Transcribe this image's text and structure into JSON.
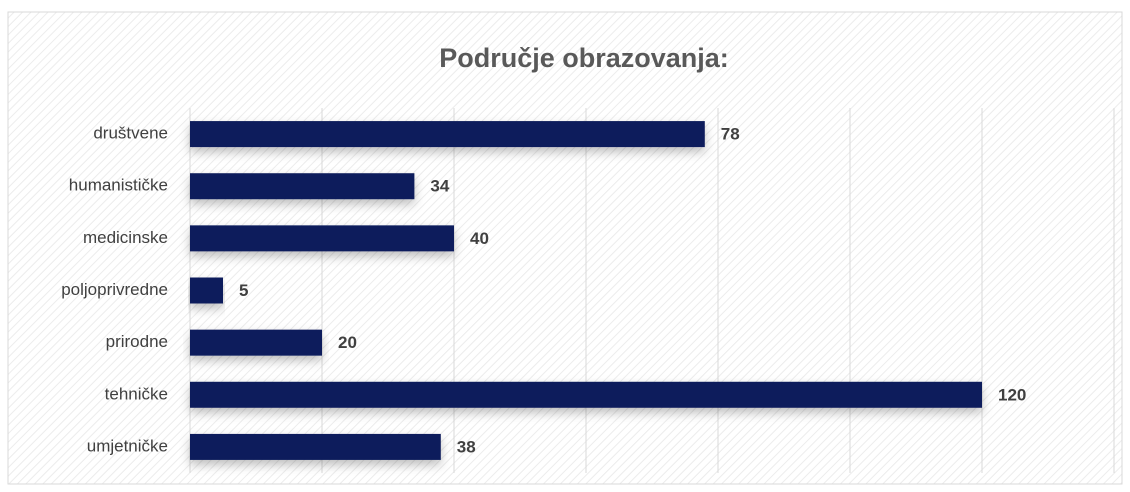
{
  "chart_data": {
    "type": "bar",
    "orientation": "horizontal",
    "title": "Područje obrazovanja:",
    "categories": [
      "društvene",
      "humanističke",
      "medicinske",
      "poljoprivredne",
      "prirodne",
      "tehničke",
      "umjetničke"
    ],
    "values": [
      78,
      34,
      40,
      5,
      20,
      120,
      38
    ],
    "color": "#0d1f5c",
    "xlim": [
      0,
      140
    ],
    "xticks": [
      0,
      20,
      40,
      60,
      80,
      100,
      120,
      140
    ],
    "grid": true
  }
}
